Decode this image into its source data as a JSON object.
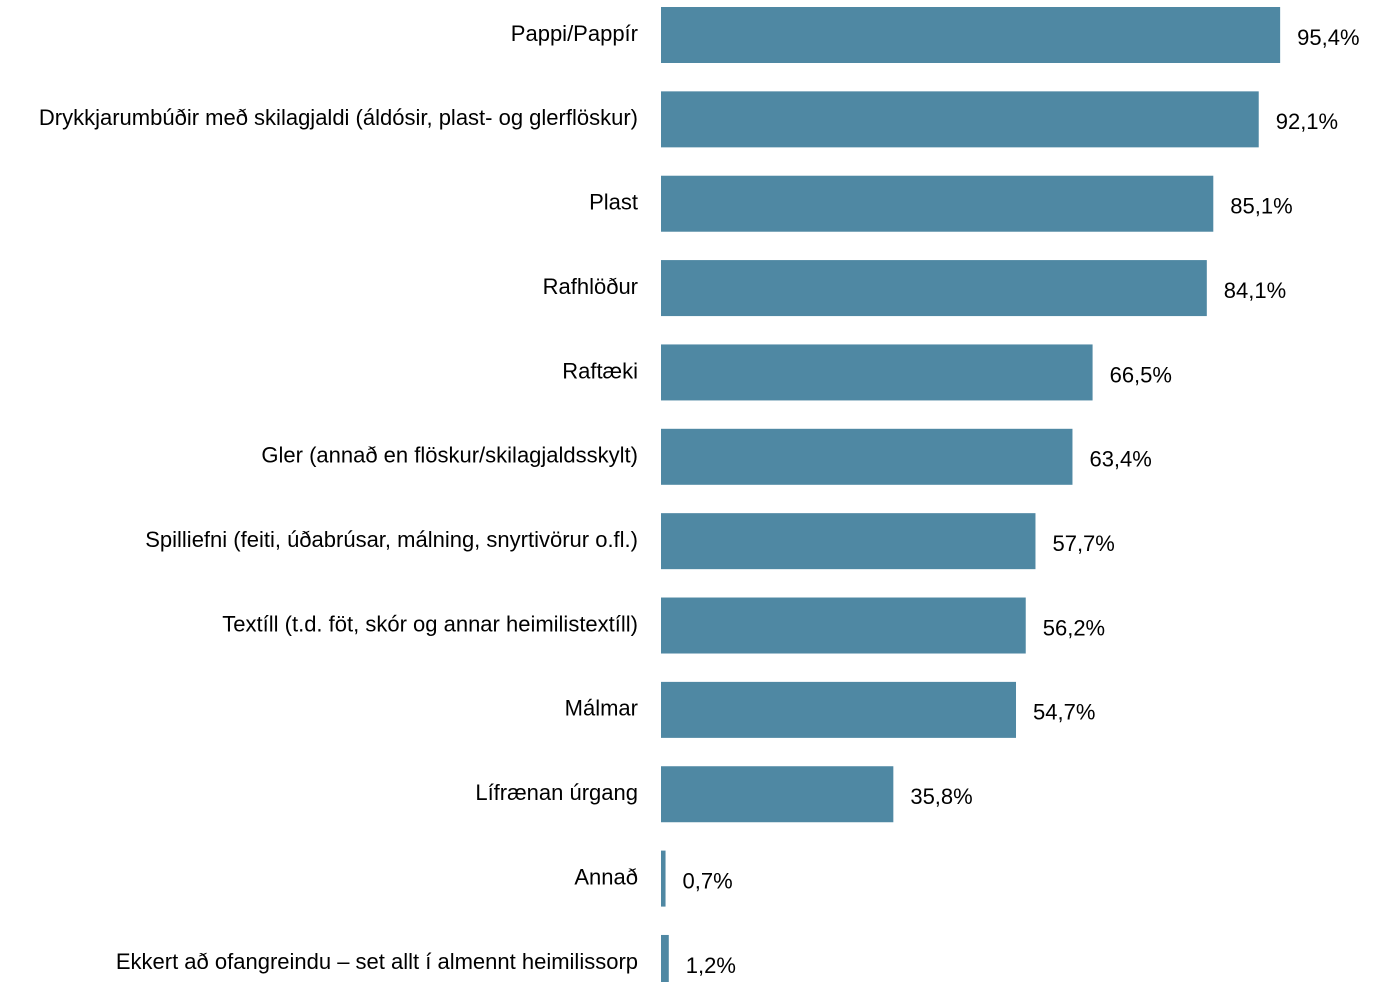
{
  "chart_data": {
    "type": "barh",
    "categories": [
      "Pappi/Pappír",
      "Drykkjarumbúðir með skilagjaldi (áldósir, plast- og glerflöskur)",
      "Plast",
      "Rafhlöður",
      "Raftæki",
      "Gler (annað en flöskur/skilagjaldsskylt)",
      "Spilliefni (feiti, úðabrúsar, málning, snyrtivörur o.fl.)",
      "Textíll (t.d. föt, skór og annar heimilistextíll)",
      "Málmar",
      "Lífrænan úrgang",
      "Annað",
      "Ekkert að ofangreindu – set allt í almennt heimilissorp"
    ],
    "values": [
      95.4,
      92.1,
      85.1,
      84.1,
      66.5,
      63.4,
      57.7,
      56.2,
      54.7,
      35.8,
      0.7,
      1.2
    ],
    "value_labels": [
      "95,4%",
      "92,1%",
      "85,1%",
      "84,1%",
      "66,5%",
      "63,4%",
      "57,7%",
      "56,2%",
      "54,7%",
      "35,8%",
      "0,7%",
      "1,2%"
    ],
    "color": "#4f88a3",
    "xlim": [
      0,
      100
    ]
  }
}
